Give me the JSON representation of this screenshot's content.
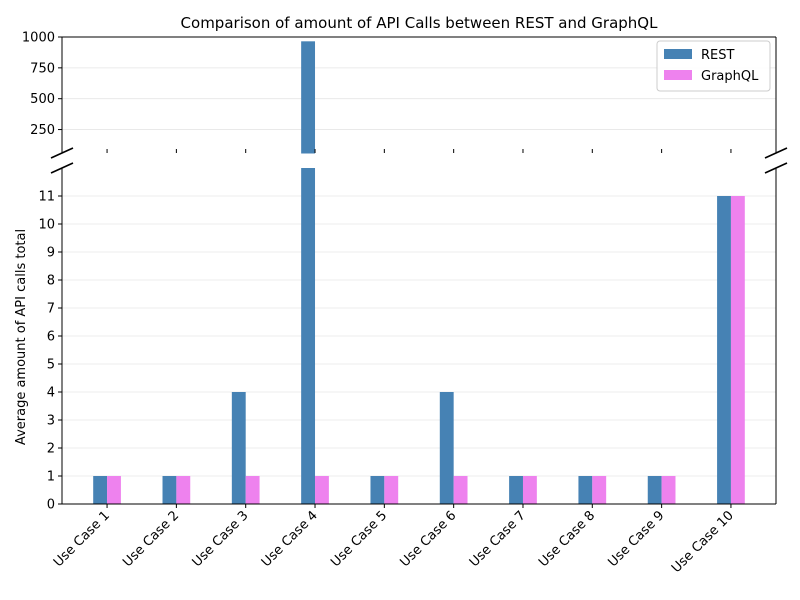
{
  "chart_data": {
    "type": "bar",
    "title": "Comparison of amount of API Calls between REST and GraphQL",
    "ylabel": "Average amount of API calls total",
    "xlabel": "",
    "categories": [
      "Use Case 1",
      "Use Case 2",
      "Use Case 3",
      "Use Case 4",
      "Use Case 5",
      "Use Case 6",
      "Use Case 7",
      "Use Case 8",
      "Use Case 9",
      "Use Case 10"
    ],
    "series": [
      {
        "name": "REST",
        "color": "#4682b4",
        "values": [
          1,
          1,
          4,
          965,
          1,
          4,
          1,
          1,
          1,
          11
        ]
      },
      {
        "name": "GraphQL",
        "color": "#ee82ee",
        "values": [
          1,
          1,
          1,
          1,
          1,
          1,
          1,
          1,
          1,
          11
        ]
      }
    ],
    "broken_axis": true,
    "upper_ylim": [
      60,
      1000
    ],
    "upper_yticks": [
      250,
      500,
      750,
      1000
    ],
    "lower_ylim": [
      0,
      12
    ],
    "lower_yticks": [
      0,
      1,
      2,
      3,
      4,
      5,
      6,
      7,
      8,
      9,
      10,
      11
    ],
    "grid": "y",
    "legend": "top-right"
  }
}
